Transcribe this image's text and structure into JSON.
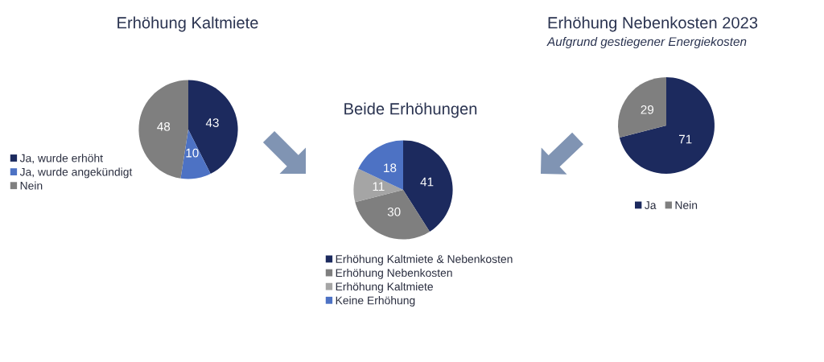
{
  "chart_data": [
    {
      "type": "pie",
      "title": "Erhöhung Kaltmiete",
      "categories": [
        "Ja, wurde erhöht",
        "Ja, wurde angekündigt",
        "Nein"
      ],
      "values": [
        43,
        10,
        48
      ],
      "colors": [
        "#1c2a5e",
        "#4d72c4",
        "#7f7f7f"
      ],
      "data_labels": true,
      "legend": "left"
    },
    {
      "type": "pie",
      "title": "Beide Erhöhungen",
      "categories": [
        "Erhöhung Kaltmiete & Nebenkosten",
        "Erhöhung Nebenkosten",
        "Erhöhung Kaltmiete",
        "Keine Erhöhung"
      ],
      "values": [
        41,
        30,
        11,
        18
      ],
      "colors": [
        "#1c2a5e",
        "#7f7f7f",
        "#a5a5a5",
        "#4d72c4"
      ],
      "data_labels": true,
      "legend": "bottom"
    },
    {
      "type": "pie",
      "title": "Erhöhung Nebenkosten 2023",
      "subtitle": "Aufgrund gestiegener Energiekosten",
      "categories": [
        "Ja",
        "Nein"
      ],
      "values": [
        71,
        29
      ],
      "colors": [
        "#1c2a5e",
        "#7f7f7f"
      ],
      "data_labels": true,
      "legend": "bottom"
    }
  ]
}
